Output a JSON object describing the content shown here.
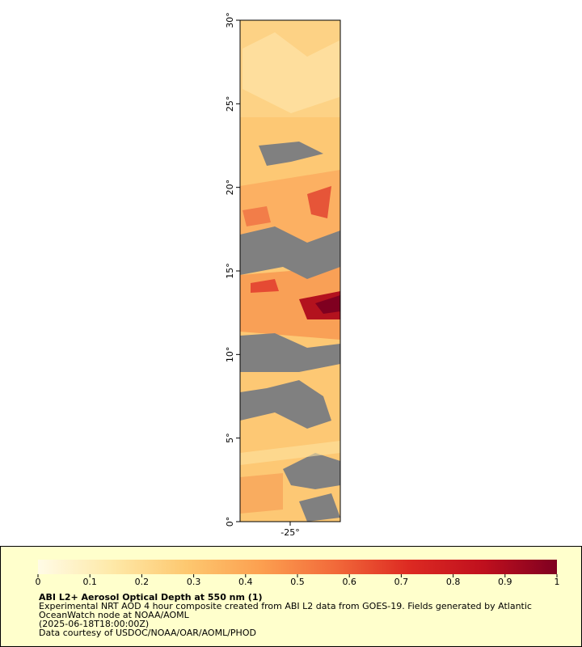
{
  "chart_data": {
    "type": "map",
    "title": "ABI L2+ Aerosol Optical Depth at 550 nm (1)",
    "description_lines": [
      "Experimental NRT AOD 4 hour composite created from ABI L2 data from GOES-19. Fields generated by Atlantic",
      "OceanWatch node at NOAA/AOML"
    ],
    "time": "(2025-06-18T18:00:00Z)",
    "credit": "Data courtesy of USDOC/NOAA/OAR/AOML/PHOD",
    "xlim": [
      -28,
      -22
    ],
    "xticks": [
      {
        "value": -25,
        "label": "-25°"
      }
    ],
    "ylim": [
      0,
      30
    ],
    "yticks": [
      {
        "value": 0,
        "label": "0°"
      },
      {
        "value": 5,
        "label": "5°"
      },
      {
        "value": 10,
        "label": "10°"
      },
      {
        "value": 15,
        "label": "15°"
      },
      {
        "value": 20,
        "label": "20°"
      },
      {
        "value": 25,
        "label": "25°"
      },
      {
        "value": 30,
        "label": "30°"
      }
    ],
    "colorbar": {
      "lim": [
        0,
        1
      ],
      "ticks": [
        0,
        0.1,
        0.2,
        0.3,
        0.4,
        0.5,
        0.6,
        0.7,
        0.8,
        0.9,
        1
      ],
      "colors": [
        "#fffbe6",
        "#fee9a8",
        "#fdc870",
        "#fca050",
        "#f26a3a",
        "#dd2a22",
        "#c0101e",
        "#7f0020"
      ]
    }
  }
}
